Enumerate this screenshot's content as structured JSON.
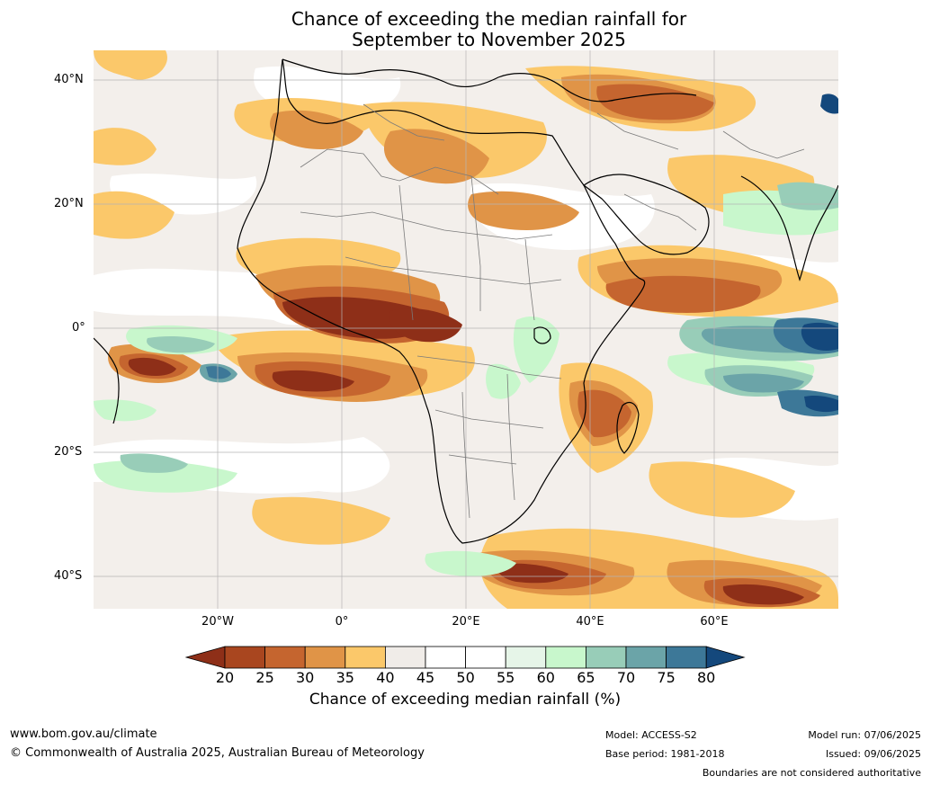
{
  "title": {
    "line1": "Chance of exceeding the median rainfall for",
    "line2": "September to November 2025"
  },
  "map": {
    "lat_labels": [
      "40°N",
      "20°N",
      "0°",
      "20°S",
      "40°S"
    ],
    "lon_labels": [
      "20°W",
      "0°",
      "20°E",
      "40°E",
      "60°E"
    ]
  },
  "colorbar": {
    "ticks": [
      "20",
      "25",
      "30",
      "35",
      "40",
      "45",
      "50",
      "55",
      "60",
      "65",
      "70",
      "75",
      "80"
    ],
    "colors": [
      "#8e2f18",
      "#a9461f",
      "#c5652f",
      "#e09447",
      "#fbc86a",
      "#f0ece8",
      "#ffffff",
      "#ffffff",
      "#e6f5e8",
      "#c8f7cc",
      "#98cdb8",
      "#6ba4a8",
      "#3d7898",
      "#14487c"
    ],
    "label": "Chance of exceeding median rainfall (%)"
  },
  "footer": {
    "url": "www.bom.gov.au/climate",
    "copyright": "© Commonwealth of Australia 2025, Australian Bureau of Meteorology",
    "model": "Model: ACCESS-S2",
    "base_period": "Base period: 1981-2018",
    "model_run": "Model run: 07/06/2025",
    "issued": "Issued: 09/06/2025",
    "disclaimer": "Boundaries are not considered authoritative"
  }
}
